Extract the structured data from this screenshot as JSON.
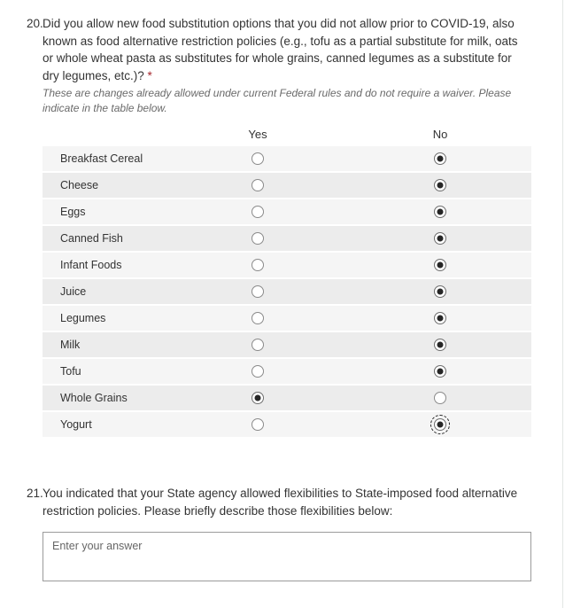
{
  "question20": {
    "number": "20.",
    "text": "Did you allow new food substitution options that you did not allow prior to COVID-19, also known as food alternative restriction policies (e.g., tofu as a partial substitute for milk, oats or whole wheat pasta as substitutes for whole grains, canned legumes as a substitute for dry legumes, etc.)? ",
    "required_marker": "*",
    "subtext": "These are changes already allowed under current Federal rules and do not require a waiver. Please indicate in the table below.",
    "columns": [
      "Yes",
      "No"
    ],
    "rows": [
      {
        "label": "Breakfast Cereal",
        "selected": "No",
        "focused": false
      },
      {
        "label": "Cheese",
        "selected": "No",
        "focused": false
      },
      {
        "label": "Eggs",
        "selected": "No",
        "focused": false
      },
      {
        "label": "Canned Fish",
        "selected": "No",
        "focused": false
      },
      {
        "label": "Infant Foods",
        "selected": "No",
        "focused": false
      },
      {
        "label": "Juice",
        "selected": "No",
        "focused": false
      },
      {
        "label": "Legumes",
        "selected": "No",
        "focused": false
      },
      {
        "label": "Milk",
        "selected": "No",
        "focused": false
      },
      {
        "label": "Tofu",
        "selected": "No",
        "focused": false
      },
      {
        "label": "Whole Grains",
        "selected": "Yes",
        "focused": false
      },
      {
        "label": "Yogurt",
        "selected": "No",
        "focused": true
      }
    ]
  },
  "question21": {
    "number": "21.",
    "text": "You indicated that your State agency allowed flexibilities to State-imposed food alternative restriction policies. Please briefly describe those flexibilities below:",
    "answer_placeholder": "Enter your answer",
    "answer_value": ""
  },
  "colors": {
    "required_asterisk": "#a4262c",
    "text": "#333333",
    "subtext": "#6a6a6a",
    "row_odd_bg": "#f5f5f5",
    "row_even_bg": "#ececec",
    "radio_border": "#8a8a8a",
    "radio_dot": "#262626",
    "input_border": "#9b9b9b"
  }
}
